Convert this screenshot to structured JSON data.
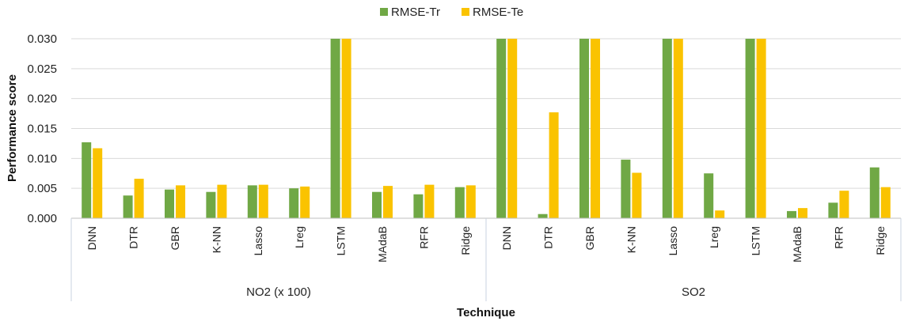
{
  "chart_data": {
    "type": "bar",
    "legend": {
      "position": "top"
    },
    "ylim": [
      0,
      0.03
    ],
    "y_ticks": [
      "0.000",
      "0.005",
      "0.010",
      "0.015",
      "0.020",
      "0.025",
      "0.030"
    ],
    "ylabel": "Performance score",
    "xlabel": "Technique",
    "grid": true,
    "colors": {
      "RMSE-Tr": "#70a845",
      "RMSE-Te": "#fac300"
    },
    "groups": [
      {
        "name": "NO2 (x 100)",
        "categories": [
          "DNN",
          "DTR",
          "GBR",
          "K-NN",
          "Lasso",
          "Lreg",
          "LSTM",
          "MAdaB",
          "RFR",
          "Ridge"
        ],
        "series": [
          {
            "name": "RMSE-Tr",
            "values": [
              0.0127,
              0.0038,
              0.0048,
              0.0044,
              0.0055,
              0.005,
              0.03,
              0.0044,
              0.004,
              0.0052
            ]
          },
          {
            "name": "RMSE-Te",
            "values": [
              0.0117,
              0.0066,
              0.0055,
              0.0056,
              0.0056,
              0.0053,
              0.03,
              0.0054,
              0.0056,
              0.0055
            ]
          }
        ]
      },
      {
        "name": "SO2",
        "categories": [
          "DNN",
          "DTR",
          "GBR",
          "K-NN",
          "Lasso",
          "Lreg",
          "LSTM",
          "MAdaB",
          "RFR",
          "Ridge"
        ],
        "series": [
          {
            "name": "RMSE-Tr",
            "values": [
              0.03,
              0.0007,
              0.03,
              0.0098,
              0.03,
              0.0075,
              0.03,
              0.0012,
              0.0026,
              0.0085
            ]
          },
          {
            "name": "RMSE-Te",
            "values": [
              0.03,
              0.0177,
              0.03,
              0.0076,
              0.03,
              0.0013,
              0.03,
              0.0017,
              0.0046,
              0.0052
            ]
          }
        ]
      }
    ]
  }
}
